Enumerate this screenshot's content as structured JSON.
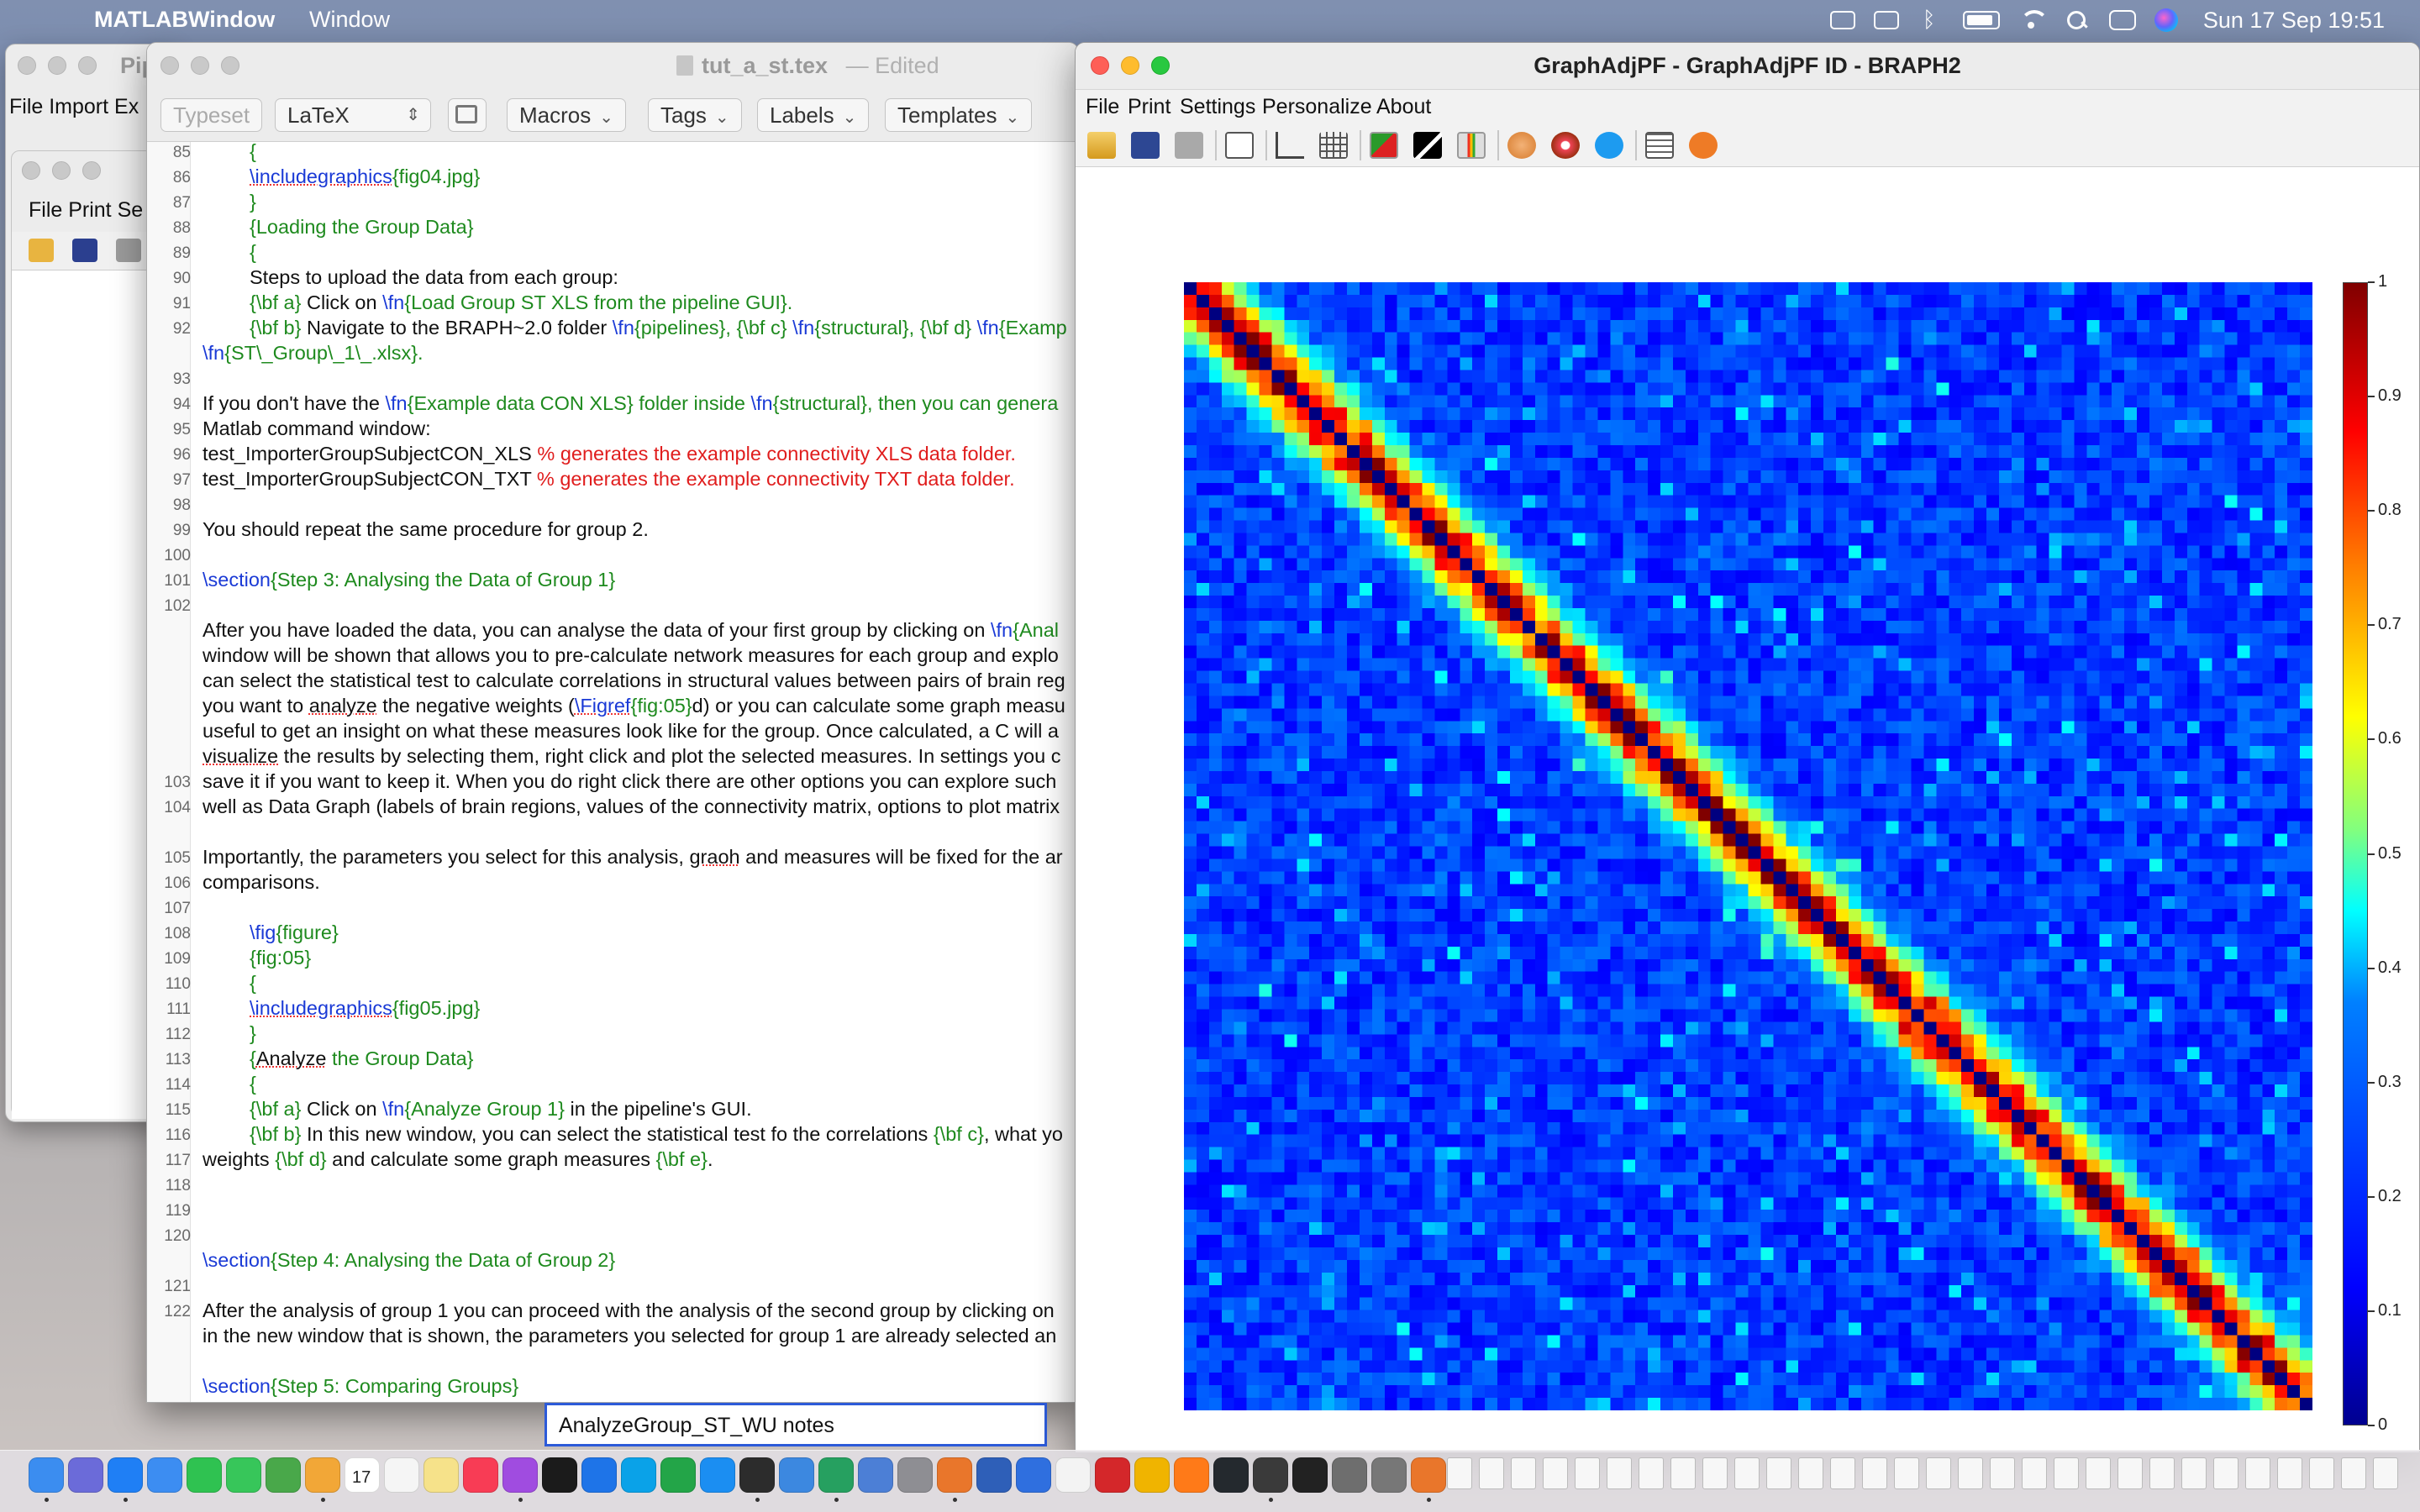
{
  "menubar": {
    "app_name": "MATLABWindow",
    "menu_window": "Window",
    "clock": "Sun 17 Sep  19:51"
  },
  "bg_windows": {
    "pipeline_title": "Pip",
    "pipeline_menu": "File  Import  Ex",
    "inner_menu": "File  Print  Se"
  },
  "editor": {
    "title": "tut_a_st.tex",
    "edited": "— Edited",
    "toolbar": {
      "typeset": "Typeset",
      "engine": "LaTeX",
      "macros": "Macros",
      "tags": "Tags",
      "labels": "Labels",
      "templates": "Templates"
    },
    "line_numbers": [
      "85",
      "86",
      "87",
      "88",
      "89",
      "90",
      "91",
      "92",
      "93",
      "94",
      "95",
      "96",
      "97",
      "98",
      "99",
      "100",
      "101",
      "102",
      "103",
      "104",
      "105",
      "106",
      "107",
      "108",
      "109",
      "110",
      "111",
      "112",
      "113",
      "114",
      "115",
      "116",
      "117",
      "118",
      "119",
      "120",
      "121",
      "122"
    ],
    "lines": {
      "l85": "{",
      "l86a": "\\includegraphics",
      "l86b": "{fig04.jpg}",
      "l87": "}",
      "l88": "{Loading the Group Data}",
      "l89": "{",
      "l90": "Steps to upload the data from each group:",
      "l91a": "{\\bf a}",
      "l91b": " Click on ",
      "l91c": "\\fn",
      "l91d": "{Load Group ST XLS from the pipeline GUI}.",
      "l92a": "{\\bf b}",
      "l92b": " Navigate to the BRAPH~2.0 folder ",
      "l92c": "\\fn",
      "l92d": "{pipelines}, ",
      "l92e": "{\\bf c}",
      "l92f": " ",
      "l92g": "\\fn",
      "l92h": "{structural}, ",
      "l92i": "{\\bf d}",
      "l92j": " ",
      "l92k": "\\fn",
      "l92l": "{Examp",
      "l92wrap_a": "\\fn",
      "l92wrap_b": "{ST\\_Group\\_1\\_.xlsx}.",
      "l94a": "If you don't have the ",
      "l94b": "\\fn",
      "l94c": "{Example data CON XLS} folder inside ",
      "l94d": "\\fn",
      "l94e": "{structural}, then you can genera",
      "l94wrap": "Matlab command window:",
      "l95a": "test_ImporterGroupSubjectCON_XLS ",
      "l95b": " % generates the example connectivity XLS data folder.",
      "l96a": "test_ImporterGroupSubjectCON_TXT ",
      "l96b": " % generates the example connectivity TXT data folder.",
      "l98": "You should repeat the same procedure for group 2.",
      "l100a": "\\section",
      "l100b": "{Step 3: Analysing the Data of Group 1}",
      "l102a": "After you have loaded the data, you can analyse the data of your first group by clicking on ",
      "l102b": "\\fn",
      "l102c": "{Anal",
      "l102w1": "window will be shown that allows you to pre-calculate network measures for each group and explo",
      "l102w2": "can select the statistical test to calculate correlations in structural values between pairs of brain reg",
      "l102w3a": "you want to ",
      "l102w3b": "analyze",
      "l102w3c": " the negative weights (",
      "l102w3d": "\\Figref",
      "l102w3e": "{fig:05}",
      "l102w3f": "d) or you can calculate some graph measu",
      "l102w4": "useful to get an insight on what these measures look like for the group. Once calculated, a C will a",
      "l102w5a": "visualize",
      "l102w5b": " the results by selecting them, right click and plot the selected measures. In settings you c",
      "l102w6": "save it if you want to keep it. When you do right click there are other options you can explore such",
      "l102w7": "well as Data Graph (labels of brain regions, values of the connectivity matrix, options to plot matrix",
      "l104a": "Importantly, the parameters you select for this analysis, ",
      "l104b": "graoh",
      "l104c": " and measures will be fixed for the ar",
      "l104wrap": "comparisons.",
      "l106a": "\\fig",
      "l106b": "{figure}",
      "l107": "{fig:05}",
      "l108": "{",
      "l109a": "\\includegraphics",
      "l109b": "{fig05.jpg}",
      "l110": "}",
      "l111a": "{",
      "l111b": "Analyze",
      "l111c": " the Group Data}",
      "l112": "{",
      "l113a": "{\\bf a}",
      "l113b": " Click on ",
      "l113c": "\\fn",
      "l113d": "{Analyze Group 1}",
      "l113e": " in the pipeline's GUI.",
      "l114a": "{\\bf b}",
      "l114b": " In this new window, you can select the statistical test fo the correlations ",
      "l114c": "{\\bf c}",
      "l114d": ", what yo",
      "l114w_a": "weights ",
      "l114w_b": "{\\bf d}",
      "l114w_c": " and calculate some graph measures ",
      "l114w_d": "{\\bf e}",
      "l114w_e": ".",
      "l118a": "\\section",
      "l118b": "{Step 4: Analysing the Data of Group 2}",
      "l120": "After the analysis of group 1 you can proceed with the analysis of the second group by clicking on",
      "l120wrap": "in the new window that is shown, the parameters you selected for group 1 are already selected an",
      "l122a": "\\section",
      "l122b": "{Step 5: Comparing Groups}"
    },
    "notes_field": "AnalyzeGroup_ST_WU notes"
  },
  "braph": {
    "title": "GraphAdjPF - GraphAdjPF ID - BRAPH2",
    "menu": [
      "File",
      "Print",
      "Settings",
      "Personalize",
      "About"
    ],
    "toolbar_icons": [
      "open-icon",
      "save-icon",
      "print-icon",
      "layout-icon",
      "axis-icon",
      "grid-icon",
      "colormap-icon",
      "bw-colormap-icon",
      "colorbar-icon",
      "brain-icon",
      "surface-icon",
      "twitter-icon",
      "notes-icon",
      "help-icon"
    ]
  },
  "chart_data": {
    "type": "heatmap",
    "title": "",
    "matrix_size": 90,
    "values_description": "symmetric weighted adjacency matrix, diagonal value 0, strong near-diagonal band (0.6-1.0), background mostly 0.05-0.35",
    "colormap": "jet",
    "colorbar_ticks": [
      "1",
      "0.9",
      "0.8",
      "0.7",
      "0.6",
      "0.5",
      "0.4",
      "0.3",
      "0.2",
      "0.1",
      "0"
    ],
    "colorbar_range": [
      0,
      1
    ]
  },
  "dock": {
    "icons": [
      "finder-icon",
      "launchpad-icon",
      "safari-icon",
      "mail-icon",
      "facetime-icon",
      "messages-icon",
      "maps-icon",
      "photos-icon",
      "calendar-icon",
      "reminders-icon",
      "notes-icon",
      "music-icon",
      "podcasts-icon",
      "tv-icon",
      "keynote-icon",
      "skype-icon",
      "numbers-icon",
      "appstore-icon",
      "terminal-icon",
      "preview-icon",
      "sheets-icon",
      "r-icon",
      "settings-icon",
      "matlab-icon",
      "security-icon",
      "xcode-icon",
      "pages-icon",
      "acrobat-icon",
      "chrome-icon",
      "firefox-icon",
      "github-icon",
      "texshop-icon",
      "x-icon",
      "calculator-icon",
      "keyboard-icon",
      "matlab2-icon"
    ],
    "calendar_day": "17"
  }
}
